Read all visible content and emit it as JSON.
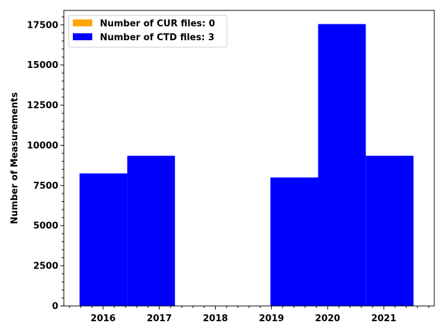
{
  "chart_data": {
    "type": "bar",
    "title": "",
    "xlabel": "",
    "ylabel": "Number of Measurements",
    "ylim": [
      0,
      18400
    ],
    "xlim": [
      2015.3,
      2021.9
    ],
    "y_ticks": [
      0,
      2500,
      5000,
      7500,
      10000,
      12500,
      15000,
      17500
    ],
    "x_ticks": [
      2016,
      2017,
      2018,
      2019,
      2020,
      2021
    ],
    "grid": false,
    "legend_position": "top-left",
    "series": [
      {
        "name": "Number of CUR files: 0",
        "color": "#ffa500",
        "bins": []
      },
      {
        "name": "Number of CTD files: 3",
        "color": "#0000ff",
        "bins": [
          {
            "x0": 2015.58,
            "x1": 2016.43,
            "value": 8250
          },
          {
            "x0": 2016.43,
            "x1": 2017.28,
            "value": 9350
          },
          {
            "x0": 2017.28,
            "x1": 2018.13,
            "value": 0
          },
          {
            "x0": 2018.13,
            "x1": 2018.98,
            "value": 0
          },
          {
            "x0": 2018.98,
            "x1": 2019.83,
            "value": 8000
          },
          {
            "x0": 2019.83,
            "x1": 2020.68,
            "value": 17550
          },
          {
            "x0": 2020.68,
            "x1": 2021.53,
            "value": 9350
          }
        ]
      }
    ]
  }
}
